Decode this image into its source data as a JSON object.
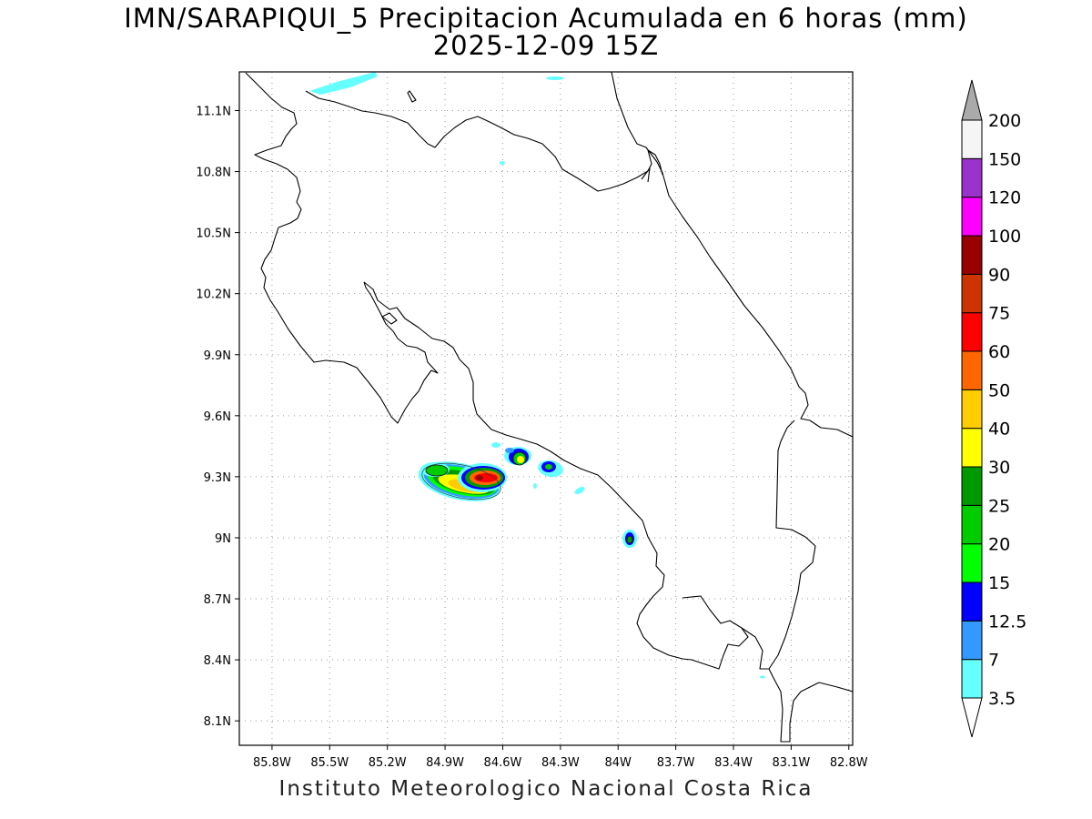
{
  "title": {
    "line1": "IMN/SARAPIQUI_5 Precipitacion Acumulada en 6 horas (mm)",
    "line2": "2025-12-09 15Z"
  },
  "footer": "Instituto Meteorologico Nacional Costa Rica",
  "map": {
    "lon_range": [
      -85.97,
      -82.78
    ],
    "lat_range": [
      7.98,
      11.29
    ],
    "lon_ticks": [
      {
        "value": -85.8,
        "label": "85.8W"
      },
      {
        "value": -85.5,
        "label": "85.5W"
      },
      {
        "value": -85.2,
        "label": "85.2W"
      },
      {
        "value": -84.9,
        "label": "84.9W"
      },
      {
        "value": -84.6,
        "label": "84.6W"
      },
      {
        "value": -84.3,
        "label": "84.3W"
      },
      {
        "value": -84.0,
        "label": "84W"
      },
      {
        "value": -83.7,
        "label": "83.7W"
      },
      {
        "value": -83.4,
        "label": "83.4W"
      },
      {
        "value": -83.1,
        "label": "83.1W"
      },
      {
        "value": -82.8,
        "label": "82.8W"
      }
    ],
    "lat_ticks": [
      {
        "value": 11.1,
        "label": "11.1N"
      },
      {
        "value": 10.8,
        "label": "10.8N"
      },
      {
        "value": 10.5,
        "label": "10.5N"
      },
      {
        "value": 10.2,
        "label": "10.2N"
      },
      {
        "value": 9.9,
        "label": "9.9N"
      },
      {
        "value": 9.6,
        "label": "9.6N"
      },
      {
        "value": 9.3,
        "label": "9.3N"
      },
      {
        "value": 9.0,
        "label": "9N"
      },
      {
        "value": 8.7,
        "label": "8.7N"
      },
      {
        "value": 8.4,
        "label": "8.4N"
      },
      {
        "value": 8.1,
        "label": "8.1N"
      }
    ],
    "grid": "dotted"
  },
  "colorbar": {
    "levels": [
      "3.5",
      "7",
      "12.5",
      "15",
      "20",
      "25",
      "30",
      "40",
      "50",
      "60",
      "75",
      "90",
      "100",
      "120",
      "150",
      "200"
    ],
    "colors": [
      "#66ffff",
      "#3399ff",
      "#0000ff",
      "#00ff00",
      "#00cc00",
      "#009900",
      "#ffff00",
      "#ffcc00",
      "#ff6600",
      "#ff0000",
      "#cc3300",
      "#990000",
      "#ff00ff",
      "#9933cc",
      "#f5f5f5"
    ],
    "over_color": "#aaaaaa",
    "under_color": "#ffffff"
  },
  "precip_cells": [
    {
      "lon": -84.66,
      "lat": 9.31,
      "max_level": 90
    },
    {
      "lon": -84.84,
      "lat": 9.33,
      "max_level": 30
    },
    {
      "lon": -84.4,
      "lat": 9.41,
      "max_level": 30
    },
    {
      "lon": -84.24,
      "lat": 9.37,
      "max_level": 25
    },
    {
      "lon": -83.77,
      "lat": 9.01,
      "max_level": 25
    }
  ]
}
